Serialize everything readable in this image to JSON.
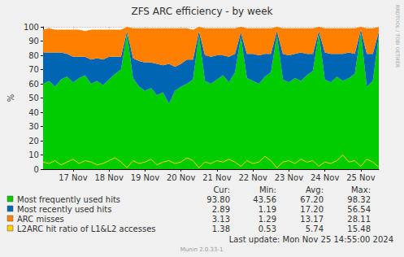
{
  "chart_data": {
    "type": "area",
    "title": "ZFS ARC efficiency - by week",
    "y_label": "%",
    "stacked": true,
    "grid": true,
    "legend": "bottom",
    "categories": [
      null,
      null,
      null,
      null,
      null,
      "17 Nov",
      null,
      null,
      null,
      null,
      null,
      "18 Nov",
      null,
      null,
      null,
      null,
      null,
      "19 Nov",
      null,
      null,
      null,
      null,
      null,
      "20 Nov",
      null,
      null,
      null,
      null,
      null,
      "21 Nov",
      null,
      null,
      null,
      null,
      null,
      "22 Nov",
      null,
      null,
      null,
      null,
      null,
      "23 Nov",
      null,
      null,
      null,
      null,
      null,
      "24 Nov",
      null,
      null,
      null,
      null,
      null,
      "25 Nov",
      null,
      null,
      null
    ],
    "ylim": [
      0,
      100
    ],
    "yticks": [
      0,
      10,
      20,
      30,
      40,
      50,
      60,
      70,
      80,
      90,
      100
    ],
    "stats_columns": [
      "Cur:",
      "Min:",
      "Avg:",
      "Max:"
    ],
    "series": [
      {
        "name": "Most frequently used hits",
        "color": "#00cc00",
        "type": "area",
        "stats": [
          "93.80",
          "43.56",
          "67.20",
          "98.32"
        ],
        "values": [
          60,
          62,
          58,
          63,
          65,
          61,
          64,
          66,
          60,
          62,
          59,
          63,
          67,
          70,
          95,
          64,
          58,
          55,
          57,
          52,
          54,
          46,
          55,
          58,
          60,
          63,
          94,
          62,
          60,
          63,
          66,
          61,
          68,
          93,
          64,
          62,
          60,
          65,
          68,
          94,
          63,
          61,
          64,
          62,
          66,
          69,
          95,
          63,
          61,
          65,
          62,
          64,
          67,
          96,
          58,
          62,
          93.8
        ]
      },
      {
        "name": "Most recently used hits",
        "color": "#0066b3",
        "type": "area",
        "stats": [
          "2.89",
          "1.19",
          "17.20",
          "56.54"
        ],
        "values": [
          22,
          20,
          24,
          19,
          16,
          18,
          15,
          13,
          17,
          16,
          18,
          16,
          12,
          9,
          2,
          14,
          18,
          20,
          18,
          22,
          19,
          28,
          17,
          16,
          17,
          14,
          3,
          18,
          19,
          17,
          14,
          18,
          13,
          3,
          17,
          19,
          20,
          16,
          13,
          3,
          18,
          19,
          17,
          20,
          15,
          12,
          2,
          19,
          20,
          16,
          19,
          18,
          14,
          2,
          23,
          19,
          2.89
        ]
      },
      {
        "name": "ARC misses",
        "color": "#ff8000",
        "type": "area",
        "stats": [
          "3.13",
          "1.29",
          "13.17",
          "28.11"
        ],
        "values": [
          16,
          17,
          16,
          16,
          17,
          19,
          19,
          18,
          21,
          20,
          21,
          19,
          19,
          19,
          3,
          21,
          23,
          24,
          24,
          25,
          26,
          25,
          27,
          25,
          22,
          21,
          3,
          19,
          20,
          19,
          19,
          20,
          18,
          4,
          18,
          18,
          19,
          18,
          18,
          3,
          18,
          19,
          18,
          17,
          18,
          18,
          3,
          17,
          18,
          18,
          18,
          17,
          18,
          2,
          18,
          18,
          3.13
        ]
      },
      {
        "name": "L2ARC hit ratio of L1&L2 accesses",
        "color": "#ffcc00",
        "type": "line",
        "stats": [
          "1.38",
          "0.53",
          "5.74",
          "15.48"
        ],
        "values": [
          5,
          4,
          6,
          3,
          5,
          7,
          4,
          6,
          5,
          3,
          4,
          6,
          8,
          5,
          1,
          6,
          4,
          5,
          7,
          3,
          5,
          6,
          4,
          5,
          8,
          6,
          1,
          5,
          4,
          6,
          5,
          7,
          5,
          2,
          6,
          4,
          5,
          9,
          6,
          1,
          5,
          6,
          4,
          7,
          5,
          6,
          2,
          5,
          4,
          6,
          10,
          5,
          6,
          2,
          7,
          5,
          1.38
        ]
      }
    ],
    "last_update": "Last update: Mon Nov 25 14:55:00 2024",
    "footer": "Munin 2.0.33-1",
    "watermark": "RRDTOOL / TOBI OETIKER"
  }
}
